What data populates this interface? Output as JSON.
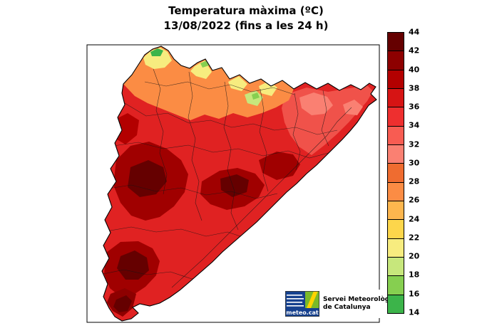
{
  "title": {
    "line1": "Temperatura màxima (ºC)",
    "line2": "13/08/2022 (fins a les 24 h)"
  },
  "legend": {
    "unit_values": [
      "44",
      "42",
      "40",
      "38",
      "36",
      "34",
      "32",
      "30",
      "28",
      "26",
      "24",
      "22",
      "20",
      "18",
      "16",
      "14"
    ],
    "bands": [
      {
        "label": "42-44",
        "color": "#650000"
      },
      {
        "label": "40-42",
        "color": "#8d0000"
      },
      {
        "label": "38-40",
        "color": "#b30000"
      },
      {
        "label": "36-38",
        "color": "#d61414"
      },
      {
        "label": "34-36",
        "color": "#ee2f2f"
      },
      {
        "label": "32-34",
        "color": "#f85c52"
      },
      {
        "label": "30-32",
        "color": "#fa8072"
      },
      {
        "label": "28-30",
        "color": "#ef6c30"
      },
      {
        "label": "26-28",
        "color": "#fb8c44"
      },
      {
        "label": "24-26",
        "color": "#fdb64e"
      },
      {
        "label": "22-24",
        "color": "#fdd64b"
      },
      {
        "label": "20-22",
        "color": "#f7ec7f"
      },
      {
        "label": "18-20",
        "color": "#c7e77c"
      },
      {
        "label": "16-18",
        "color": "#86cf50"
      },
      {
        "label": "14-16",
        "color": "#3cb44a"
      }
    ]
  },
  "branding": {
    "logo_text": "meteo.cat",
    "org_name_line1": "Servei Meteorològic",
    "org_name_line2": "de Catalunya"
  },
  "chart_data": {
    "type": "heatmap",
    "title": "Temperatura màxima (ºC)",
    "subtitle": "13/08/2022 (fins a les 24 h)",
    "region": "Catalunya",
    "unit": "ºC",
    "scale_ticks": [
      44,
      42,
      40,
      38,
      36,
      34,
      32,
      30,
      28,
      26,
      24,
      22,
      20,
      18,
      16,
      14
    ],
    "scale_range": [
      14,
      44
    ],
    "legend_position": "right",
    "observed_pattern": "Most of Catalonia shaded 34-42 ºC reds; darkest maroon (40-44) over the western plain, central depression and Ebre valley; oranges/yellows (20-30) along the Pyrenees strip; small greens (14-20) at the highest northern peaks; pink patches (30-32) in the north-east."
  }
}
